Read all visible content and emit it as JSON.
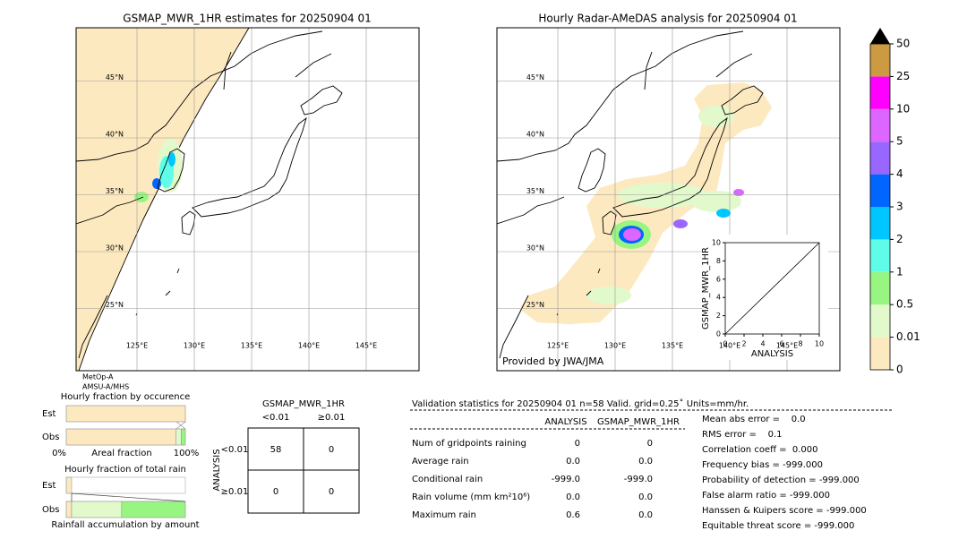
{
  "maps": [
    {
      "title": "GSMAP_MWR_1HR estimates for 20250904 01",
      "satellite": [
        "MetOp-A",
        "AMSU-A/MHS"
      ]
    },
    {
      "title": "Hourly Radar-AMeDAS analysis for 20250904 01",
      "credit": "Provided by JWA/JMA"
    }
  ],
  "grid": {
    "lons": [
      {
        "value": 125,
        "label": "125°E"
      },
      {
        "value": 130,
        "label": "130°E"
      },
      {
        "value": 135,
        "label": "135°E"
      },
      {
        "value": 140,
        "label": "140°E"
      },
      {
        "value": 145,
        "label": "145°E"
      }
    ],
    "lats": [
      {
        "value": 45,
        "label": "45°N"
      },
      {
        "value": 40,
        "label": "40°N"
      },
      {
        "value": 35,
        "label": "35°N"
      },
      {
        "value": 30,
        "label": "30°N"
      },
      {
        "value": 25,
        "label": "25°N"
      }
    ]
  },
  "colorbar": {
    "levels": [
      0,
      0.01,
      0.5,
      1,
      2,
      3,
      4,
      5,
      10,
      25,
      50
    ],
    "colors": [
      "#fde9c0",
      "#e2f9cc",
      "#98f582",
      "#5ffde9",
      "#00c6ff",
      "#0066ff",
      "#9966ff",
      "#dc66ff",
      "#ff00ff",
      "#cc9a40"
    ]
  },
  "scatter": {
    "xlabel": "ANALYSIS",
    "ylabel": "GSMAP_MWR_1HR",
    "xlim": [
      0,
      10
    ],
    "ylim": [
      0,
      10
    ],
    "xticks": [
      0,
      2,
      4,
      6,
      8,
      10
    ],
    "yticks": [
      0,
      2,
      4,
      6,
      8,
      10
    ]
  },
  "occurrence": {
    "title": "Hourly fraction by occurence",
    "rows": [
      "Est",
      "Obs"
    ],
    "xlabel": "Areal fraction",
    "xticklabels": [
      "0%",
      "100%"
    ],
    "fractions": [
      [
        1.0
      ],
      [
        0.92,
        0.045,
        0.035
      ]
    ]
  },
  "total_rain": {
    "title": "Hourly fraction of total rain",
    "rows": [
      "Est",
      "Obs"
    ],
    "xlabel": "Rainfall accumulation by amount",
    "fractions": [
      [
        0.045
      ],
      [
        0.045,
        0.42,
        0.535
      ]
    ]
  },
  "contingency": {
    "title": "GSMAP_MWR_1HR",
    "columns": [
      "<0.01",
      "≥0.01"
    ],
    "row_title": "ANALYSIS",
    "rows": [
      "<0.01",
      "≥0.01"
    ],
    "cells": [
      [
        58,
        0
      ],
      [
        0,
        0
      ]
    ]
  },
  "validation": {
    "title": "Validation statistics for 20250904 01  n=58 Valid. grid=0.25˚ Units=mm/hr.",
    "columns": [
      "ANALYSIS",
      "GSMAP_MWR_1HR"
    ],
    "rows": [
      {
        "label": "Num of gridpoints raining",
        "values": [
          "0",
          "0"
        ]
      },
      {
        "label": "Average rain",
        "values": [
          "0.0",
          "0.0"
        ]
      },
      {
        "label": "Conditional rain",
        "values": [
          "-999.0",
          "-999.0"
        ]
      },
      {
        "label": "Rain volume (mm km²10⁶)",
        "values": [
          "0.0",
          "0.0"
        ]
      },
      {
        "label": "Maximum rain",
        "values": [
          "0.6",
          "0.0"
        ]
      }
    ],
    "scores": [
      "Mean abs error =    0.0",
      "RMS error =    0.1",
      "Correlation coeff =  0.000",
      "Frequency bias = -999.000",
      "Probability of detection = -999.000",
      "False alarm ratio = -999.000",
      "Hanssen & Kuipers score = -999.000",
      "Equitable threat score = -999.000"
    ]
  }
}
